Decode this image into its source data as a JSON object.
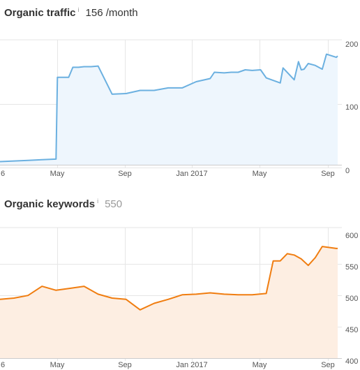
{
  "charts": {
    "traffic": {
      "title": "Organic traffic",
      "info_icon": "i",
      "summary": "156 /month",
      "color": "#6bb0e0",
      "fill": "#eef6fd"
    },
    "keywords": {
      "title": "Organic keywords",
      "info_icon": "i",
      "summary": "550",
      "color": "#f07d10",
      "fill": "#fdeee2"
    }
  },
  "chart_data": [
    {
      "type": "area",
      "title": "Organic traffic",
      "x_tick_labels": [
        "6",
        "May",
        "Sep",
        "Jan 2017",
        "May",
        "Sep"
      ],
      "y_tick_labels": [
        "200",
        "100",
        "0"
      ],
      "ylim": [
        0,
        200
      ],
      "grid": true,
      "series": [
        {
          "x": [
            0,
            1,
            2,
            3,
            4,
            4.1,
            4.5,
            4.9,
            5.2,
            5.6,
            6.0,
            6.5,
            7,
            8,
            9,
            10,
            11,
            12,
            13,
            14,
            15,
            15.3,
            16,
            16.5,
            17,
            17.5,
            18,
            18.6,
            19,
            20,
            20.2,
            21,
            21.3,
            21.5,
            21.7,
            22.0,
            22.5,
            23,
            23.3,
            24,
            24.1
          ],
          "values": [
            5,
            6,
            7,
            8,
            9,
            140,
            140,
            140,
            156,
            156,
            157,
            157,
            158,
            113,
            114,
            119,
            119,
            123,
            123,
            133,
            138,
            148,
            147,
            148,
            148,
            152,
            151,
            152,
            139,
            131,
            155,
            136,
            165,
            152,
            153,
            162,
            159,
            153,
            177,
            172,
            174
          ]
        }
      ]
    },
    {
      "type": "area",
      "title": "Organic keywords",
      "x_tick_labels": [
        "6",
        "May",
        "Sep",
        "Jan 2017",
        "May",
        "Sep"
      ],
      "y_tick_labels": [
        "600",
        "550",
        "500",
        "450",
        "400"
      ],
      "ylim": [
        400,
        600
      ],
      "grid": true,
      "series": [
        {
          "x": [
            0,
            1,
            2,
            3,
            4,
            5,
            6,
            7,
            8,
            9,
            10,
            11,
            12,
            13,
            14,
            15,
            16,
            17,
            18,
            19,
            19.5,
            20,
            20.5,
            21,
            21.5,
            22,
            22.5,
            23,
            24,
            24.1
          ],
          "values": [
            490,
            492,
            496,
            510,
            504,
            507,
            510,
            498,
            492,
            490,
            474,
            484,
            490,
            497,
            498,
            500,
            498,
            497,
            497,
            499,
            549,
            549,
            560,
            558,
            552,
            542,
            554,
            571,
            568,
            568
          ]
        }
      ]
    }
  ]
}
